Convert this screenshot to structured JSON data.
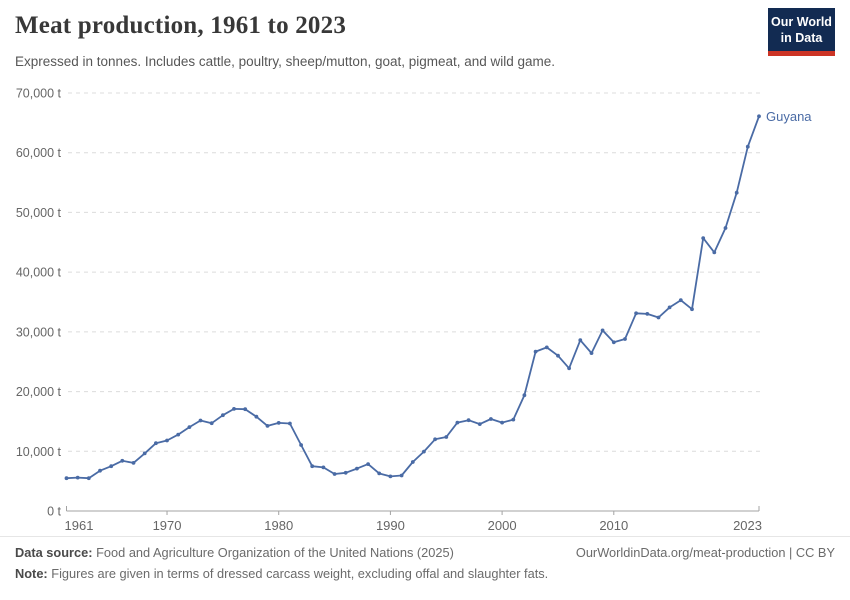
{
  "header": {
    "title": "Meat production, 1961 to 2023",
    "subtitle": "Expressed in tonnes. Includes cattle, poultry, sheep/mutton, goat, pigmeat, and wild game.",
    "logo": {
      "line1": "Our World",
      "line2": "in Data"
    }
  },
  "chart_data": {
    "type": "line",
    "title": "Meat production, 1961 to 2023",
    "unit": "t",
    "grid": "horizontal-dashed",
    "legend_position": "end-of-line-label",
    "ylim": [
      0,
      70000
    ],
    "yticks": [
      0,
      10000,
      20000,
      30000,
      40000,
      50000,
      60000,
      70000
    ],
    "ytick_labels": [
      "0 t",
      "10,000 t",
      "20,000 t",
      "30,000 t",
      "40,000 t",
      "50,000 t",
      "60,000 t",
      "70,000 t"
    ],
    "xticks": [
      1961,
      1970,
      1980,
      1990,
      2000,
      2010,
      2023
    ],
    "x": [
      1961,
      1962,
      1963,
      1964,
      1965,
      1966,
      1967,
      1968,
      1969,
      1970,
      1971,
      1972,
      1973,
      1974,
      1975,
      1976,
      1977,
      1978,
      1979,
      1980,
      1981,
      1982,
      1983,
      1984,
      1985,
      1986,
      1987,
      1988,
      1989,
      1990,
      1991,
      1992,
      1993,
      1994,
      1995,
      1996,
      1997,
      1998,
      1999,
      2000,
      2001,
      2002,
      2003,
      2004,
      2005,
      2006,
      2007,
      2008,
      2009,
      2010,
      2011,
      2012,
      2013,
      2014,
      2015,
      2016,
      2017,
      2018,
      2019,
      2020,
      2021,
      2022,
      2023
    ],
    "series": [
      {
        "name": "Guyana",
        "color": "#4a6ba5",
        "values": [
          5500,
          5600,
          5500,
          6750,
          7500,
          8400,
          8050,
          9650,
          11350,
          11800,
          12800,
          14050,
          15150,
          14700,
          16050,
          17100,
          17050,
          15800,
          14250,
          14750,
          14650,
          11050,
          7500,
          7300,
          6200,
          6400,
          7100,
          7850,
          6300,
          5800,
          5950,
          8200,
          9950,
          12000,
          12400,
          14800,
          15200,
          14550,
          15400,
          14800,
          15300,
          19400,
          26700,
          27400,
          26000,
          23900,
          28600,
          26450,
          30250,
          28250,
          28800,
          33100,
          33000,
          32400,
          34100,
          35300,
          33800,
          45700,
          43300,
          47400,
          53300,
          61000,
          66100
        ]
      }
    ]
  },
  "footer": {
    "datasource_label": "Data source:",
    "datasource": "Food and Agriculture Organization of the United Nations (2025)",
    "link": "OurWorldinData.org/meat-production | CC BY",
    "note_label": "Note:",
    "note": "Figures are given in terms of dressed carcass weight, excluding offal and slaughter fats."
  },
  "colors": {
    "line": "#4a6ba5",
    "logo_navy": "#122b52",
    "logo_red": "#cc3425",
    "grid": "#dcdcdc",
    "axis": "#a3a3a3"
  }
}
